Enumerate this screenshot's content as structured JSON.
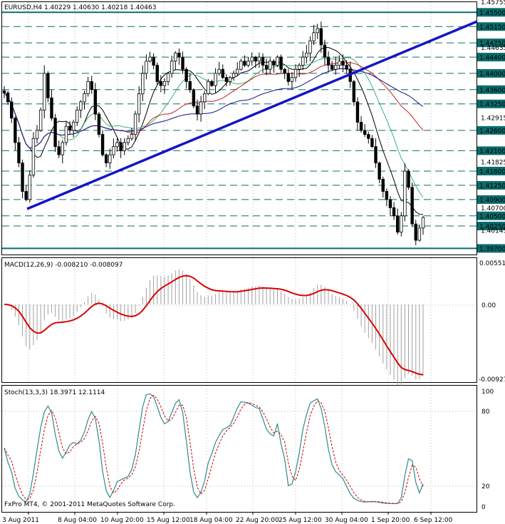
{
  "header": {
    "symbol_info": "EURUSD,H4  1.40229 1.40630 1.40218 1.40463"
  },
  "macd": {
    "title": "MACD(12,26,9) -0.008210 -0.008097",
    "scale": [
      "0.00551",
      "0.00",
      "-0.00927"
    ]
  },
  "stoch": {
    "title": "Stoch(13,3,3) 18.3971 12.1114",
    "scale": [
      "100",
      "80",
      "20",
      "0"
    ]
  },
  "copyright": "FxPro MT4, © 2001-2011 MetaQuotes Software Corp.",
  "colors": {
    "background": "#ffffff",
    "level_line": "#0c6b6b",
    "trend_line": "#1414c8",
    "ma_fast": "#000000",
    "ma_green": "#3cb371",
    "ma_red": "#cc2020",
    "ma_navy": "#101080",
    "macd_signal": "#dd0000",
    "stoch_main": "#2e8b8b",
    "stoch_signal": "#cc0000"
  },
  "chart_data": {
    "type": "candlestick",
    "price_range": [
      1.3955,
      1.4575
    ],
    "levels": [
      {
        "value": 1.455,
        "label": "1.45500"
      },
      {
        "value": 1.4515,
        "label": "1.45150"
      },
      {
        "value": 1.4475,
        "label": "1.44750"
      },
      {
        "value": 1.444,
        "label": "1.44400"
      },
      {
        "value": 1.44,
        "label": "1.44000"
      },
      {
        "value": 1.436,
        "label": "1.43600"
      },
      {
        "value": 1.4325,
        "label": "1.43250"
      },
      {
        "value": 1.426,
        "label": "1.42600"
      },
      {
        "value": 1.421,
        "label": "1.42100"
      },
      {
        "value": 1.416,
        "label": "1.41600"
      },
      {
        "value": 1.4125,
        "label": "1.41250"
      },
      {
        "value": 1.409,
        "label": "1.40900"
      },
      {
        "value": 1.405,
        "label": "1.40500"
      },
      {
        "value": 1.4025,
        "label": "1.40250"
      },
      {
        "value": 1.397,
        "label": "1.39700"
      }
    ],
    "axis_ticks": [
      {
        "value": 1.45755,
        "label": "1.45755"
      },
      {
        "value": 1.44635,
        "label": "1.44635"
      },
      {
        "value": 1.42915,
        "label": "1.42915"
      },
      {
        "value": 1.41825,
        "label": "1.41825"
      },
      {
        "value": 1.407,
        "label": "1.40700"
      },
      {
        "value": 1.40145,
        "label": "1.40145"
      }
    ],
    "x_labels": [
      "3 Aug 2011",
      "8 Aug 04:00",
      "10 Aug 20:00",
      "15 Aug 12:00",
      "18 Aug 04:00",
      "22 Aug 20:00",
      "25 Aug 12:00",
      "30 Aug 04:00",
      "1 Sep 20:00",
      "6 Sep 12:00"
    ],
    "close": [
      1.4352,
      1.433,
      1.429,
      1.423,
      1.418,
      1.411,
      1.409,
      1.415,
      1.424,
      1.426,
      1.431,
      1.44,
      1.434,
      1.429,
      1.422,
      1.42,
      1.423,
      1.427,
      1.426,
      1.428,
      1.431,
      1.433,
      1.435,
      1.438,
      1.436,
      1.43,
      1.425,
      1.42,
      1.418,
      1.42,
      1.422,
      1.423,
      1.421,
      1.423,
      1.424,
      1.425,
      1.43,
      1.435,
      1.44,
      1.443,
      1.444,
      1.442,
      1.438,
      1.437,
      1.438,
      1.44,
      1.443,
      1.445,
      1.444,
      1.441,
      1.438,
      1.436,
      1.432,
      1.43,
      1.433,
      1.435,
      1.438,
      1.437,
      1.44,
      1.441,
      1.439,
      1.438,
      1.439,
      1.44,
      1.441,
      1.443,
      1.442,
      1.443,
      1.444,
      1.443,
      1.444,
      1.442,
      1.441,
      1.443,
      1.442,
      1.444,
      1.441,
      1.44,
      1.438,
      1.439,
      1.441,
      1.442,
      1.444,
      1.445,
      1.448,
      1.45,
      1.451,
      1.447,
      1.444,
      1.442,
      1.441,
      1.442,
      1.443,
      1.442,
      1.441,
      1.438,
      1.433,
      1.428,
      1.426,
      1.425,
      1.424,
      1.422,
      1.418,
      1.414,
      1.411,
      1.409,
      1.407,
      1.405,
      1.401,
      1.405,
      1.416,
      1.412,
      1.403,
      1.399,
      1.402,
      1.4046
    ],
    "macd_hist_range": [
      -0.00927,
      0.00551
    ],
    "stoch_range": [
      0,
      100
    ]
  }
}
